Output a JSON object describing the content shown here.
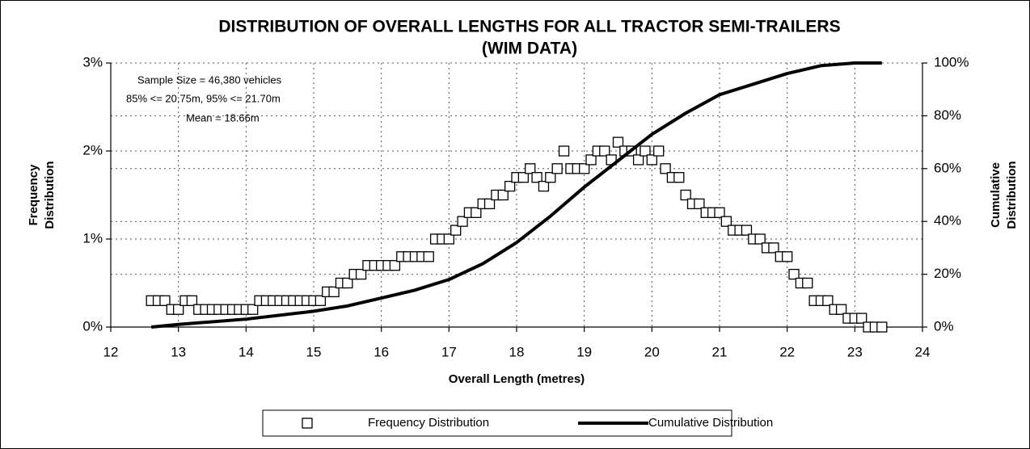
{
  "chart_data": {
    "type": "scatter",
    "title_lines": [
      "DISTRIBUTION OF OVERALL LENGTHS FOR ALL TRACTOR SEMI-TRAILERS",
      "(WIM DATA)"
    ],
    "xlabel": "Overall Length (metres)",
    "ylabel_lines": [
      "Frequency",
      "Distribution"
    ],
    "y2label_lines": [
      "Cumulative",
      "Distribution"
    ],
    "annotations": [
      "Sample Size = 46,380 vehicles",
      "85% <= 20.75m, 95% <= 21.70m",
      "Mean = 18.66m"
    ],
    "xlim": [
      12,
      24
    ],
    "xticks": [
      12,
      13,
      14,
      15,
      16,
      17,
      18,
      19,
      20,
      21,
      22,
      23,
      24
    ],
    "ylim": [
      0,
      3
    ],
    "yticks": [
      {
        "value": 0,
        "label": "0%"
      },
      {
        "value": 1,
        "label": "1%"
      },
      {
        "value": 2,
        "label": "2%"
      },
      {
        "value": 3,
        "label": "3%"
      }
    ],
    "y2lim": [
      0,
      100
    ],
    "y2ticks": [
      {
        "value": 0,
        "label": "0%"
      },
      {
        "value": 20,
        "label": "20%"
      },
      {
        "value": 40,
        "label": "40%"
      },
      {
        "value": 60,
        "label": "60%"
      },
      {
        "value": 80,
        "label": "80%"
      },
      {
        "value": 100,
        "label": "100%"
      }
    ],
    "grid": true,
    "legend": "bottom",
    "series": [
      {
        "name": "Frequency Distribution",
        "type": "scatter",
        "color": "#000000",
        "x": [
          12.6,
          12.7,
          12.8,
          12.9,
          13.0,
          13.1,
          13.2,
          13.3,
          13.4,
          13.5,
          13.6,
          13.7,
          13.8,
          13.9,
          14.0,
          14.1,
          14.2,
          14.3,
          14.4,
          14.5,
          14.6,
          14.7,
          14.8,
          14.9,
          15.0,
          15.1,
          15.2,
          15.3,
          15.4,
          15.5,
          15.6,
          15.7,
          15.8,
          15.9,
          16.0,
          16.1,
          16.2,
          16.3,
          16.4,
          16.5,
          16.6,
          16.7,
          16.8,
          16.9,
          17.0,
          17.1,
          17.2,
          17.3,
          17.4,
          17.5,
          17.6,
          17.7,
          17.8,
          17.9,
          18.0,
          18.1,
          18.2,
          18.3,
          18.4,
          18.5,
          18.6,
          18.7,
          18.8,
          18.9,
          19.0,
          19.1,
          19.2,
          19.3,
          19.4,
          19.5,
          19.6,
          19.7,
          19.8,
          19.9,
          20.0,
          20.1,
          20.2,
          20.3,
          20.4,
          20.5,
          20.6,
          20.7,
          20.8,
          20.9,
          21.0,
          21.1,
          21.2,
          21.3,
          21.4,
          21.5,
          21.6,
          21.7,
          21.8,
          21.9,
          22.0,
          22.1,
          22.2,
          22.3,
          22.4,
          22.5,
          22.6,
          22.7,
          22.8,
          22.9,
          23.0,
          23.1,
          23.2,
          23.3,
          23.4
        ],
        "values": [
          0.3,
          0.3,
          0.3,
          0.2,
          0.2,
          0.3,
          0.3,
          0.2,
          0.2,
          0.2,
          0.2,
          0.2,
          0.2,
          0.2,
          0.2,
          0.2,
          0.3,
          0.3,
          0.3,
          0.3,
          0.3,
          0.3,
          0.3,
          0.3,
          0.3,
          0.3,
          0.4,
          0.4,
          0.5,
          0.5,
          0.6,
          0.6,
          0.7,
          0.7,
          0.7,
          0.7,
          0.7,
          0.8,
          0.8,
          0.8,
          0.8,
          0.8,
          1.0,
          1.0,
          1.0,
          1.1,
          1.2,
          1.3,
          1.3,
          1.4,
          1.4,
          1.5,
          1.5,
          1.6,
          1.7,
          1.7,
          1.8,
          1.7,
          1.6,
          1.7,
          1.8,
          2.0,
          1.8,
          1.8,
          1.8,
          1.9,
          2.0,
          2.0,
          1.9,
          2.1,
          2.0,
          2.0,
          1.9,
          2.0,
          1.9,
          2.0,
          1.8,
          1.7,
          1.7,
          1.5,
          1.4,
          1.4,
          1.3,
          1.3,
          1.3,
          1.2,
          1.1,
          1.1,
          1.1,
          1.0,
          1.0,
          0.9,
          0.9,
          0.8,
          0.8,
          0.6,
          0.5,
          0.5,
          0.3,
          0.3,
          0.3,
          0.2,
          0.2,
          0.1,
          0.1,
          0.1,
          0.0,
          0.0,
          0.0
        ]
      },
      {
        "name": "Cumulative Distribution",
        "type": "line",
        "axis": "y2",
        "color": "#000000",
        "x": [
          12.6,
          13,
          14,
          15,
          15.5,
          16,
          16.5,
          17,
          17.5,
          18,
          18.5,
          19,
          19.5,
          20,
          20.5,
          21,
          21.5,
          22,
          22.5,
          23,
          23.4
        ],
        "values": [
          0,
          1,
          3,
          6,
          8,
          11,
          14,
          18,
          24,
          32,
          42,
          53,
          63,
          73,
          81,
          88,
          92,
          96,
          99,
          100,
          100
        ]
      }
    ]
  }
}
